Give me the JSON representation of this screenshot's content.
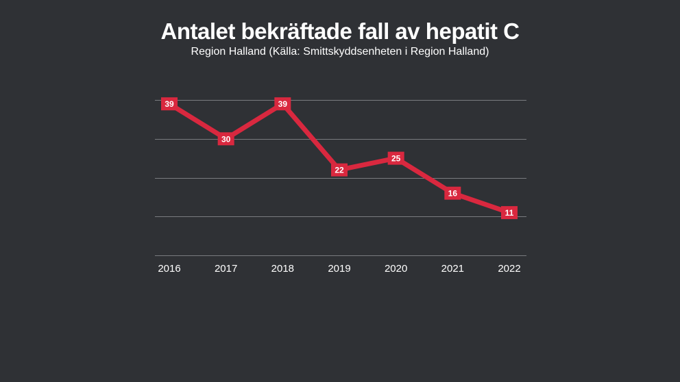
{
  "chart_data": {
    "type": "line",
    "title": "Antalet bekräftade fall av hepatit C",
    "subtitle": "Region Halland (Källa: Smittskyddsenheten i Region Halland)",
    "x": [
      "2016",
      "2017",
      "2018",
      "2019",
      "2020",
      "2021",
      "2022"
    ],
    "series": [
      {
        "values": [
          39,
          30,
          39,
          22,
          25,
          16,
          11
        ]
      }
    ],
    "ylim": [
      0,
      40
    ],
    "gridlines": [
      0,
      10,
      20,
      30,
      40
    ],
    "grid": true,
    "show_y_tick_labels": false,
    "line_color": "#d9283f",
    "label_box_color": "#d9283f",
    "label_text_color": "#ffffff",
    "background_color": "#2f3135",
    "grid_color": "#7a7c80"
  }
}
